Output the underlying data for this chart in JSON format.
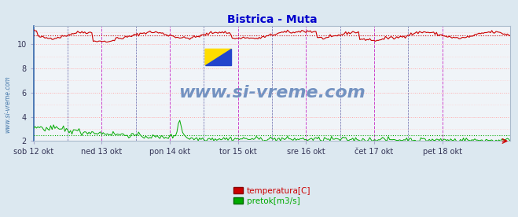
{
  "title": "Bistrica - Muta",
  "title_color": "#0000cc",
  "background_color": "#dce8f0",
  "plot_bg_color": "#f0f4f8",
  "grid_h_color": "#ffaaaa",
  "grid_v_dashed_color": "#cc88cc",
  "grid_v_minor_color": "#bbbbcc",
  "x_tick_labels": [
    "sob 12 okt",
    "ned 13 okt",
    "pon 14 okt",
    "tor 15 okt",
    "sre 16 okt",
    "čet 17 okt",
    "pet 18 okt"
  ],
  "x_tick_positions": [
    0,
    48,
    96,
    144,
    192,
    240,
    288
  ],
  "n_points": 337,
  "ylim": [
    2,
    11.5
  ],
  "yticks": [
    2,
    4,
    6,
    8,
    10
  ],
  "temp_color": "#cc0000",
  "flow_color": "#00aa00",
  "avg_temp": 10.75,
  "avg_flow": 2.5,
  "watermark": "www.si-vreme.com",
  "watermark_color": "#6688bb",
  "legend_temp_label": "temperatura[C]",
  "legend_flow_label": "pretok[m3/s]",
  "ylabel_text": "www.si-vreme.com",
  "ylabel_color": "#4477aa"
}
